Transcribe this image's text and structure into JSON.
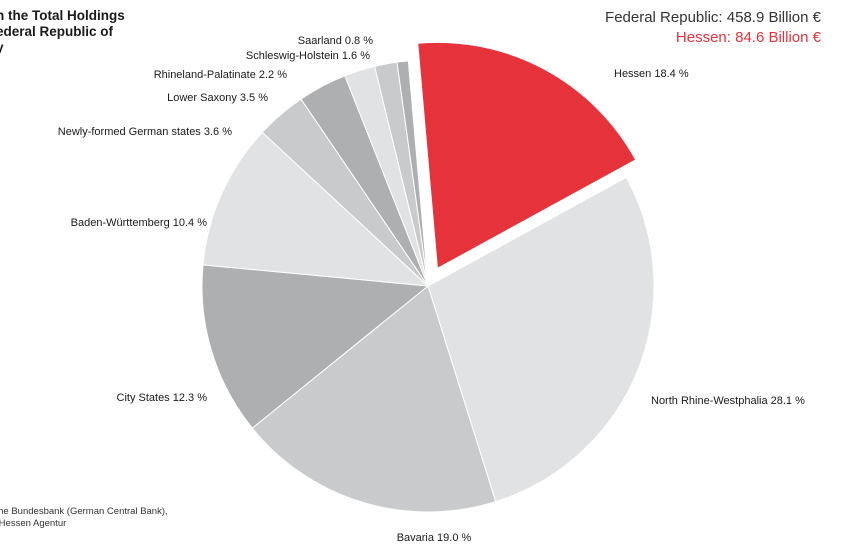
{
  "title_lines": [
    "n the Total Holdings",
    "ederal Republic of",
    "y"
  ],
  "totals": {
    "federal": "Federal Republic: 458.9 Billion  €",
    "hessen": "Hessen: 84.6 Billion  €"
  },
  "source_lines": [
    "tsche Bundesbank (German Central Bank),",
    "by Hessen Agentur"
  ],
  "colors": {
    "accent": "#e5323b"
  },
  "chart_data": {
    "type": "pie",
    "unit": "%",
    "slices": [
      {
        "label": "Hessen 18.4 %",
        "name": "Hessen",
        "value": 18.4,
        "color": "#e5323b",
        "exploded": true
      },
      {
        "label": "North Rhine-Westphalia 28.1 %",
        "name": "North Rhine-Westphalia",
        "value": 28.1,
        "color": "#e1e2e4"
      },
      {
        "label": "Bavaria 19.0 %",
        "name": "Bavaria",
        "value": 19.0,
        "color": "#c9cacc"
      },
      {
        "label": "City States 12.3 %",
        "name": "City States",
        "value": 12.3,
        "color": "#aeafb1"
      },
      {
        "label": "Baden-Württemberg 10.4 %",
        "name": "Baden-Württemberg",
        "value": 10.4,
        "color": "#e1e2e4"
      },
      {
        "label": "Newly-formed German states 3.6 %",
        "name": "Newly-formed German states",
        "value": 3.6,
        "color": "#c9cacc"
      },
      {
        "label": "Lower Saxony 3.5 %",
        "name": "Lower Saxony",
        "value": 3.5,
        "color": "#aeafb1"
      },
      {
        "label": "Rhineland-Palatinate 2.2 %",
        "name": "Rhineland-Palatinate",
        "value": 2.2,
        "color": "#e1e2e4"
      },
      {
        "label": "Schleswig-Holstein 1.6 %",
        "name": "Schleswig-Holstein",
        "value": 1.6,
        "color": "#c9cacc"
      },
      {
        "label": "Saarland 0.8 %",
        "name": "Saarland",
        "value": 0.8,
        "color": "#aeafb1"
      }
    ]
  }
}
